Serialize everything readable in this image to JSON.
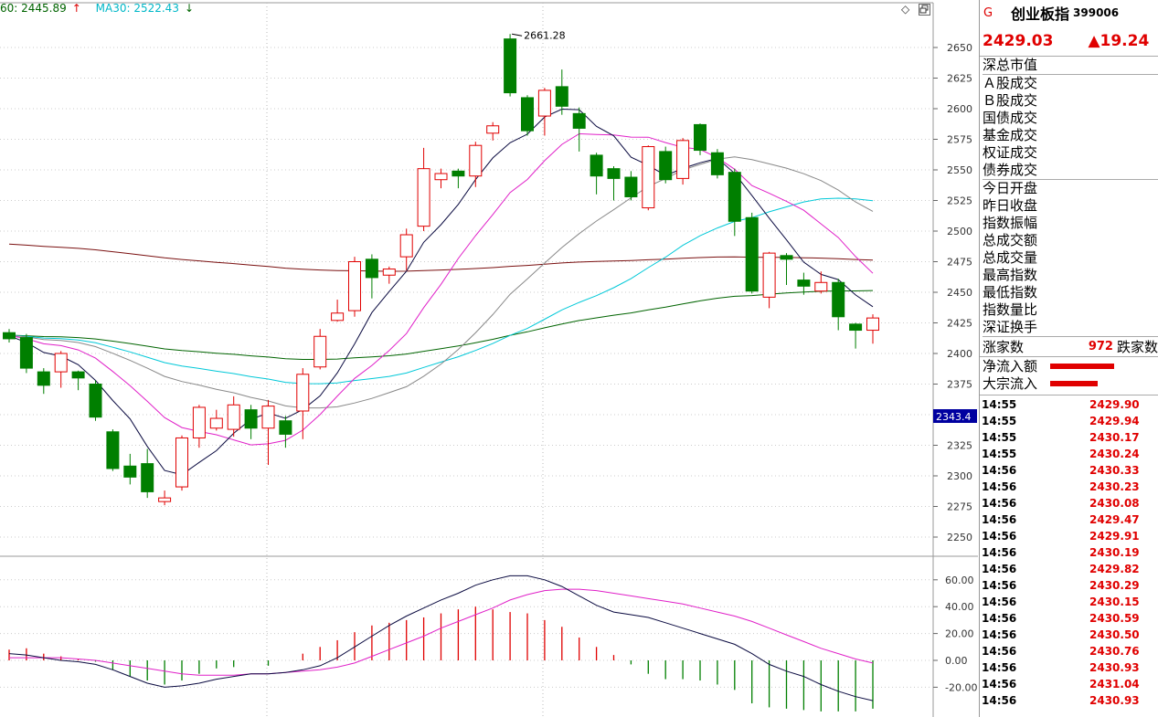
{
  "colors": {
    "up": "#e00000",
    "down": "#007f00",
    "bg": "#ffffff"
  },
  "ma_legend": [
    {
      "text": "60: 2445.89",
      "arrow": "↑",
      "color": "#006400"
    },
    {
      "text": "MA30: 2522.43",
      "arrow": "↓",
      "color": "#00c8d8"
    }
  ],
  "panel_controls": {
    "diamond_icon": "◇",
    "restore_icon": "restore-window-icon"
  },
  "price_axis": {
    "ticks": [
      "2650",
      "2625",
      "2600",
      "2575",
      "2550",
      "2525",
      "2500",
      "2475",
      "2450",
      "2425",
      "2400",
      "2375",
      "2350",
      "2325",
      "2300",
      "2275",
      "2250"
    ]
  },
  "current_label": "2343.4",
  "peak_label": "2661.28",
  "macd_axis": {
    "ticks": [
      "60.00",
      "40.00",
      "20.00",
      "0.00",
      "-20.00"
    ]
  },
  "chart_data": {
    "type": "candlestick",
    "candles": [
      [
        2417,
        2412,
        2420,
        2409
      ],
      [
        2413,
        2388,
        2416,
        2384
      ],
      [
        2385,
        2374,
        2388,
        2367
      ],
      [
        2385,
        2400,
        2402,
        2372
      ],
      [
        2385,
        2380,
        2386,
        2370
      ],
      [
        2375,
        2348,
        2378,
        2345
      ],
      [
        2336,
        2306,
        2338,
        2304
      ],
      [
        2308,
        2299,
        2318,
        2293
      ],
      [
        2310,
        2287,
        2322,
        2282
      ],
      [
        2279,
        2282,
        2288,
        2276
      ],
      [
        2291,
        2331,
        2333,
        2288
      ],
      [
        2331,
        2356,
        2358,
        2323
      ],
      [
        2339,
        2347,
        2354,
        2337
      ],
      [
        2338,
        2358,
        2365,
        2332
      ],
      [
        2354,
        2339,
        2358,
        2330
      ],
      [
        2339,
        2357,
        2362,
        2309
      ],
      [
        2345,
        2334,
        2349,
        2323
      ],
      [
        2353,
        2383,
        2388,
        2330
      ],
      [
        2389,
        2414,
        2420,
        2387
      ],
      [
        2427,
        2433,
        2444,
        2426
      ],
      [
        2435,
        2475,
        2479,
        2430
      ],
      [
        2477,
        2462,
        2481,
        2445
      ],
      [
        2464,
        2469,
        2471,
        2457
      ],
      [
        2479,
        2497,
        2502,
        2468
      ],
      [
        2504,
        2551,
        2568,
        2500
      ],
      [
        2542,
        2547,
        2551,
        2535
      ],
      [
        2549,
        2545,
        2551,
        2535
      ],
      [
        2545,
        2570,
        2573,
        2536
      ],
      [
        2580,
        2586,
        2589,
        2574
      ],
      [
        2657,
        2613,
        2661,
        2610
      ],
      [
        2609,
        2582,
        2611,
        2578
      ],
      [
        2594,
        2615,
        2617,
        2578
      ],
      [
        2618,
        2602,
        2632,
        2595
      ],
      [
        2596,
        2584,
        2601,
        2565
      ],
      [
        2562,
        2545,
        2564,
        2530
      ],
      [
        2551,
        2543,
        2553,
        2525
      ],
      [
        2544,
        2528,
        2549,
        2525
      ],
      [
        2519,
        2569,
        2570,
        2517
      ],
      [
        2565,
        2542,
        2569,
        2539
      ],
      [
        2543,
        2574,
        2576,
        2538
      ],
      [
        2587,
        2566,
        2588,
        2562
      ],
      [
        2564,
        2546,
        2567,
        2543
      ],
      [
        2548,
        2508,
        2551,
        2496
      ],
      [
        2511,
        2451,
        2515,
        2449
      ],
      [
        2446,
        2482,
        2483,
        2437
      ],
      [
        2480,
        2477,
        2482,
        2456
      ],
      [
        2460,
        2455,
        2466,
        2448
      ],
      [
        2451,
        2458,
        2467,
        2449
      ],
      [
        2458,
        2430,
        2461,
        2419
      ],
      [
        2424,
        2419,
        2425,
        2404
      ],
      [
        2419,
        2429,
        2432,
        2408
      ]
    ],
    "macd_hist": [
      8,
      9,
      5,
      3,
      1,
      -1,
      -7,
      -12,
      -15,
      -18,
      -15,
      -10,
      -6,
      -5,
      0,
      -4,
      0,
      5,
      10,
      15,
      21,
      26,
      28,
      30,
      32,
      35,
      38,
      40,
      38,
      36,
      35,
      30,
      25,
      17,
      10,
      4,
      -3,
      -10,
      -14,
      -14,
      -15,
      -18,
      -22,
      -32,
      -35,
      -36,
      -37,
      -38,
      -38,
      -38,
      -36
    ],
    "macd_dif": [
      5,
      4,
      2,
      0,
      -1,
      -3,
      -7,
      -12,
      -17,
      -20,
      -19,
      -17,
      -14,
      -12,
      -10,
      -10,
      -9,
      -7,
      -4,
      2,
      10,
      18,
      26,
      33,
      39,
      45,
      50,
      56,
      60,
      63,
      63,
      60,
      55,
      48,
      41,
      36,
      34,
      32,
      28,
      24,
      20,
      16,
      12,
      5,
      -3,
      -8,
      -12,
      -18,
      -23,
      -27,
      -30
    ],
    "macd_dea": [
      2,
      2,
      2,
      2,
      1,
      0,
      -2,
      -4,
      -6,
      -8,
      -10,
      -11,
      -11,
      -11,
      -10,
      -10,
      -9,
      -8,
      -7,
      -5,
      -2,
      3,
      8,
      13,
      18,
      24,
      29,
      34,
      39,
      45,
      49,
      52,
      53,
      53,
      52,
      50,
      48,
      46,
      44,
      42,
      39,
      36,
      33,
      29,
      24,
      19,
      14,
      9,
      5,
      1,
      -2
    ]
  }
}
